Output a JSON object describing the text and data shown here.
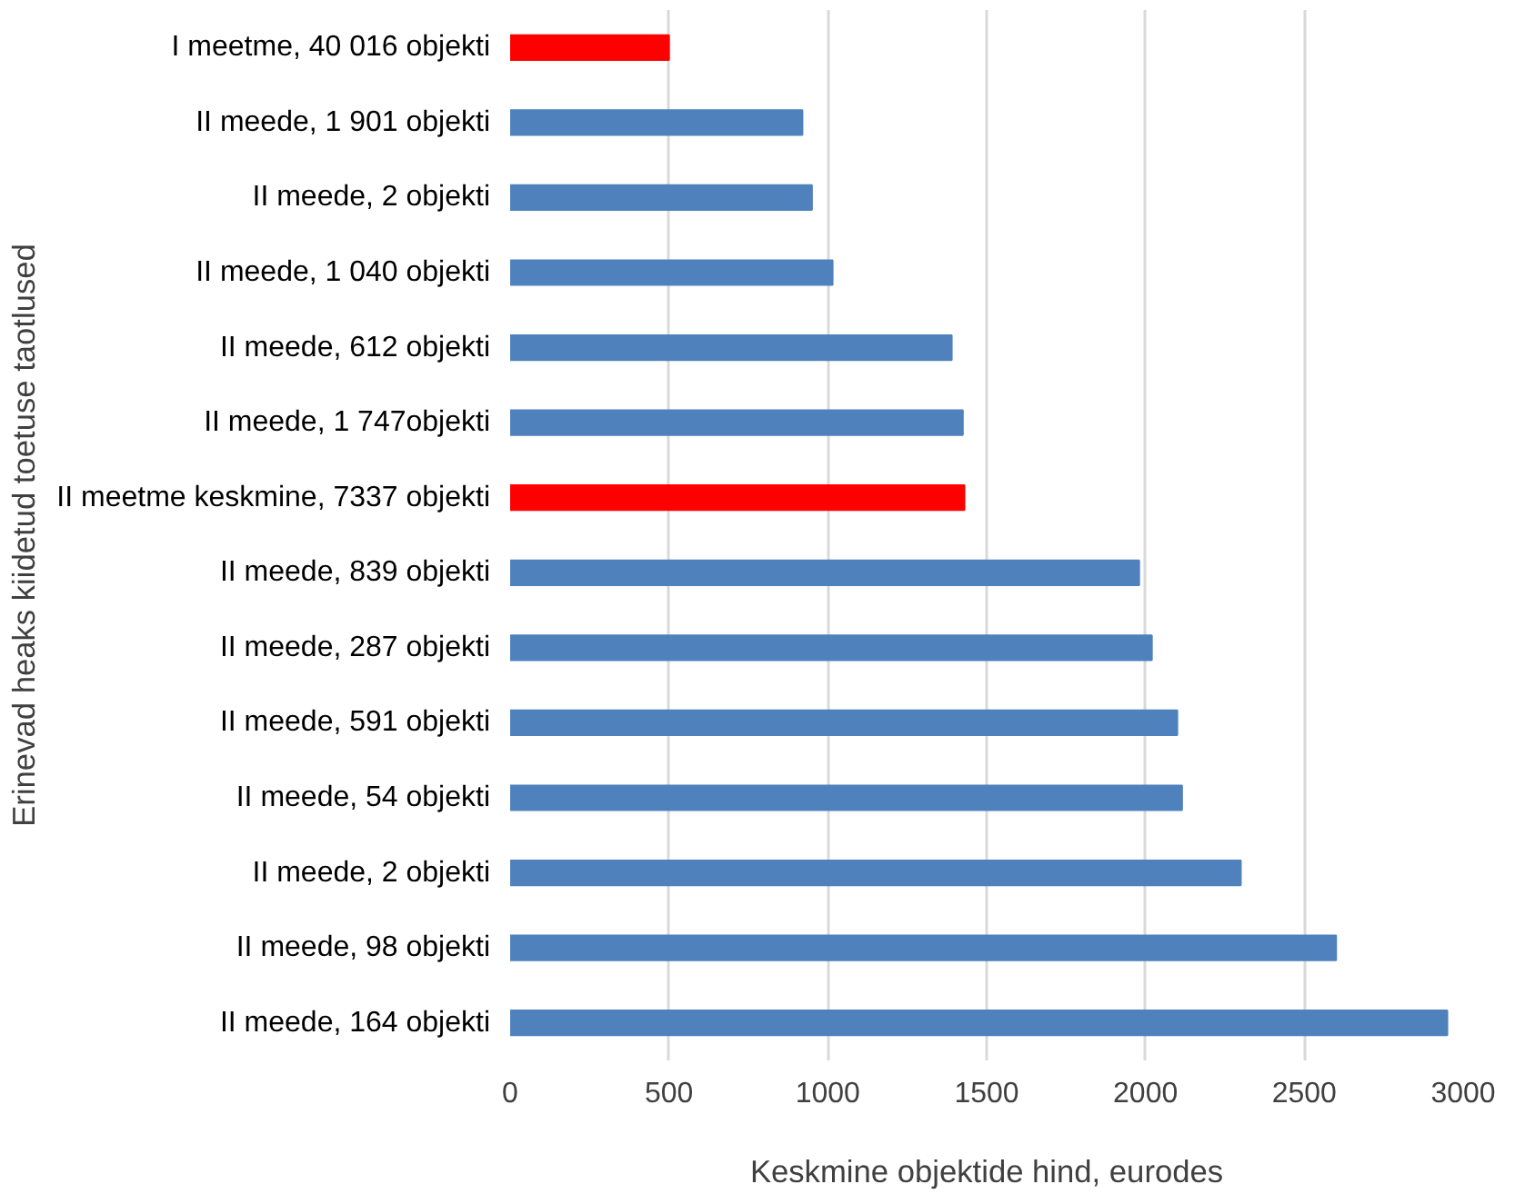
{
  "chart_data": {
    "type": "bar",
    "orientation": "horizontal",
    "xlabel": "Keskmine objektide hind, eurodes",
    "ylabel": "Erinevad heaks kiidetud toetuse taotlused",
    "categories": [
      "I meetme, 40 016 objekti",
      "II meede, 1 901 objekti",
      "II meede, 2 objekti",
      "II meede, 1 040 objekti",
      "II meede, 612 objekti",
      "II meede, 1 747objekti",
      "II meetme keskmine, 7337 objekti",
      "II meede, 839 objekti",
      "II meede, 287 objekti",
      "II meede, 591 objekti",
      "II meede, 54 objekti",
      "II meede, 2 objekti",
      "II meede, 98 objekti",
      "II meede, 164 objekti"
    ],
    "values": [
      500,
      920,
      950,
      1015,
      1390,
      1425,
      1430,
      1980,
      2020,
      2100,
      2115,
      2300,
      2600,
      2950
    ],
    "colors": [
      "#ff0000",
      "#4f81bd",
      "#4f81bd",
      "#4f81bd",
      "#4f81bd",
      "#4f81bd",
      "#ff0000",
      "#4f81bd",
      "#4f81bd",
      "#4f81bd",
      "#4f81bd",
      "#4f81bd",
      "#4f81bd",
      "#4f81bd"
    ],
    "xlim": [
      0,
      3000
    ],
    "xticks": [
      0,
      500,
      1000,
      1500,
      2000,
      2500,
      3000
    ],
    "grid": "x"
  }
}
